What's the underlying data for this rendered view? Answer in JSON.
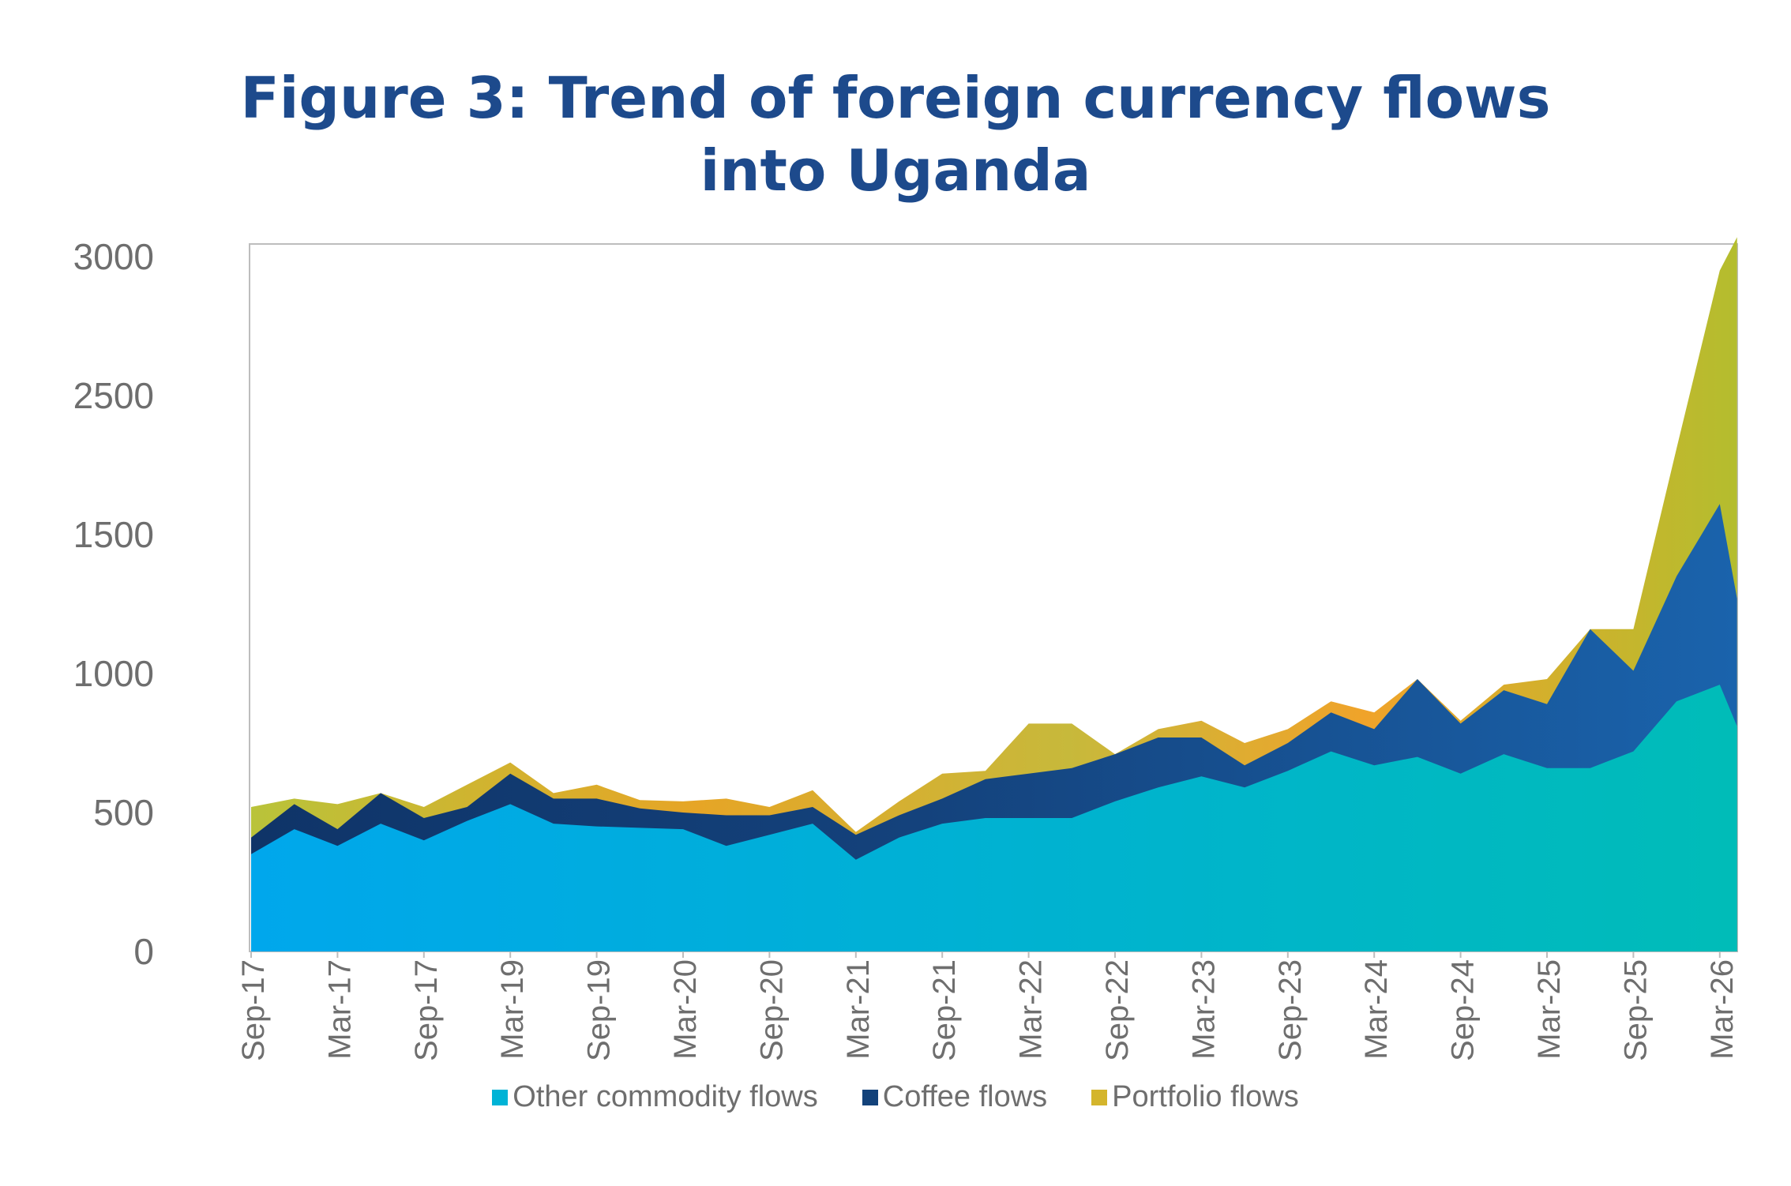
{
  "title": "Figure 3: Trend of foreign currency flows into Uganda",
  "legend": {
    "items": [
      {
        "label": "Other commodity flows",
        "color": "#00b3d6"
      },
      {
        "label": "Coffee flows",
        "color": "#13427a"
      },
      {
        "label": "Portfolio flows",
        "color": "#d4b52c"
      }
    ]
  },
  "chart_data": {
    "type": "area",
    "stacked": true,
    "title": "Figure 3: Trend of foreign currency flows into Uganda",
    "xlabel": "",
    "ylabel": "",
    "ylim": [
      0,
      3000
    ],
    "y_ticks": [
      "0",
      "500",
      "1000",
      "1500",
      "2500",
      "3000"
    ],
    "x_tick_labels": [
      "Sep-17",
      "Mar-17",
      "Sep-17",
      "Mar-19",
      "Sep-19",
      "Mar-20",
      "Sep-20",
      "Mar-21",
      "Sep-21",
      "Mar-22",
      "Sep-22",
      "Mar-23",
      "Sep-23",
      "Mar-24",
      "Sep-24",
      "Mar-25",
      "Sep-25",
      "Mar-26"
    ],
    "legend_position": "bottom",
    "grid": false,
    "x_index": [
      0,
      0.5,
      1,
      1.5,
      2,
      2.5,
      3,
      3.5,
      4,
      4.5,
      5,
      5.5,
      6,
      6.5,
      7,
      7.5,
      8,
      8.5,
      9,
      9.5,
      10,
      10.5,
      11,
      11.5,
      12,
      12.5,
      13,
      13.5,
      14,
      14.5,
      15,
      15.5,
      16,
      16.5,
      17,
      17.2
    ],
    "series": [
      {
        "name": "Other commodity flows",
        "color": "#00b3d6",
        "values": [
          350,
          440,
          380,
          460,
          400,
          470,
          530,
          460,
          450,
          445,
          440,
          380,
          420,
          460,
          330,
          410,
          460,
          480,
          480,
          480,
          540,
          590,
          630,
          590,
          650,
          720,
          670,
          700,
          640,
          710,
          660,
          660,
          720,
          900,
          960,
          810
        ]
      },
      {
        "name": "Coffee flows",
        "color": "#13427a",
        "values": [
          60,
          90,
          60,
          110,
          80,
          50,
          110,
          90,
          100,
          70,
          60,
          110,
          70,
          60,
          90,
          80,
          90,
          140,
          160,
          180,
          170,
          180,
          140,
          80,
          100,
          140,
          130,
          280,
          180,
          230,
          230,
          500,
          290,
          450,
          650,
          460
        ]
      },
      {
        "name": "Portfolio flows",
        "color": "#d4b52c",
        "values": [
          110,
          20,
          90,
          0,
          40,
          80,
          40,
          20,
          50,
          30,
          40,
          60,
          30,
          60,
          10,
          50,
          90,
          30,
          180,
          160,
          0,
          30,
          60,
          80,
          50,
          40,
          60,
          0,
          10,
          20,
          90,
          0,
          150,
          460,
          840,
          1300
        ]
      }
    ]
  }
}
